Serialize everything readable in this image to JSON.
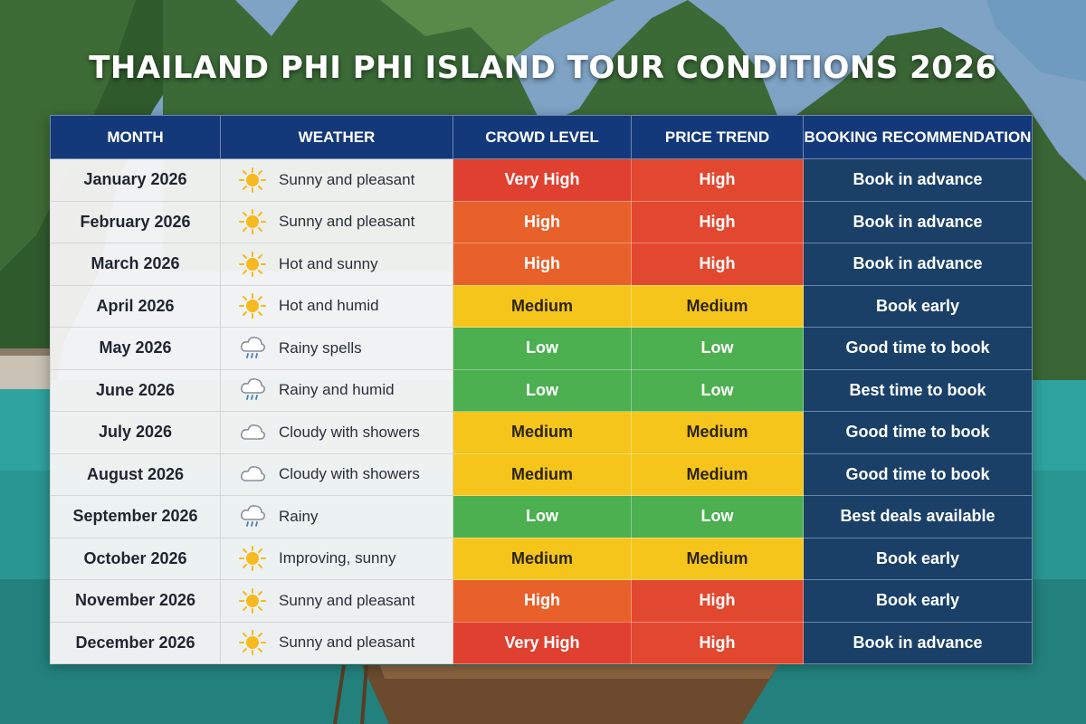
{
  "title": "THAILAND PHI PHI ISLAND TOUR CONDITIONS 2026",
  "columns": {
    "month": "MONTH",
    "weather": "WEATHER",
    "crowd": "CROWD LEVEL",
    "price": "PRICE TREND",
    "booking": "BOOKING RECOMMENDATION"
  },
  "colors": {
    "header_bg": "#14397a",
    "booking_bg": "#1a4068",
    "very_high": "#e0402f",
    "high": "#e8602a",
    "medium": "#f5c51c",
    "low": "#4caf50",
    "sun": "#f6b91e",
    "cloud": "#8a9099"
  },
  "rows": [
    {
      "month": "January 2026",
      "weather_icon": "sun-icon",
      "weather": "Sunny and pleasant",
      "crowd": "Very High",
      "crowd_level": "very-high",
      "price": "High",
      "price_level": "high",
      "booking": "Book in advance"
    },
    {
      "month": "February 2026",
      "weather_icon": "sun-icon",
      "weather": "Sunny and pleasant",
      "crowd": "High",
      "crowd_level": "high",
      "price": "High",
      "price_level": "high",
      "booking": "Book in advance"
    },
    {
      "month": "March 2026",
      "weather_icon": "sun-icon",
      "weather": "Hot and sunny",
      "crowd": "High",
      "crowd_level": "high",
      "price": "High",
      "price_level": "high",
      "booking": "Book in advance"
    },
    {
      "month": "April 2026",
      "weather_icon": "sun-icon",
      "weather": "Hot and humid",
      "crowd": "Medium",
      "crowd_level": "medium",
      "price": "Medium",
      "price_level": "medium",
      "booking": "Book early"
    },
    {
      "month": "May 2026",
      "weather_icon": "rain-cloud-icon",
      "weather": "Rainy spells",
      "crowd": "Low",
      "crowd_level": "low",
      "price": "Low",
      "price_level": "low",
      "booking": "Good time to book"
    },
    {
      "month": "June 2026",
      "weather_icon": "rain-cloud-icon",
      "weather": "Rainy and humid",
      "crowd": "Low",
      "crowd_level": "low",
      "price": "Low",
      "price_level": "low",
      "booking": "Best time to book"
    },
    {
      "month": "July 2026",
      "weather_icon": "cloud-icon",
      "weather": "Cloudy with showers",
      "crowd": "Medium",
      "crowd_level": "medium",
      "price": "Medium",
      "price_level": "medium",
      "booking": "Good time to book"
    },
    {
      "month": "August 2026",
      "weather_icon": "cloud-icon",
      "weather": "Cloudy with showers",
      "crowd": "Medium",
      "crowd_level": "medium",
      "price": "Medium",
      "price_level": "medium",
      "booking": "Good time to book"
    },
    {
      "month": "September 2026",
      "weather_icon": "rain-cloud-icon",
      "weather": "Rainy",
      "crowd": "Low",
      "crowd_level": "low",
      "price": "Low",
      "price_level": "low",
      "booking": "Best deals available"
    },
    {
      "month": "October 2026",
      "weather_icon": "sun-icon",
      "weather": "Improving, sunny",
      "crowd": "Medium",
      "crowd_level": "medium",
      "price": "Medium",
      "price_level": "medium",
      "booking": "Book early"
    },
    {
      "month": "November 2026",
      "weather_icon": "sun-icon",
      "weather": "Sunny and pleasant",
      "crowd": "High",
      "crowd_level": "high",
      "price": "High",
      "price_level": "high",
      "booking": "Book early"
    },
    {
      "month": "December 2026",
      "weather_icon": "sun-icon",
      "weather": "Sunny and pleasant",
      "crowd": "Very High",
      "crowd_level": "very-high",
      "price": "High",
      "price_level": "high",
      "booking": "Book in advance"
    }
  ]
}
